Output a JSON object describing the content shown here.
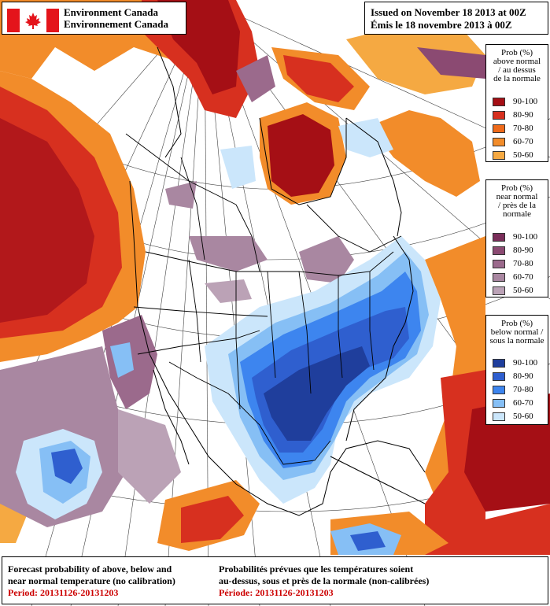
{
  "header": {
    "agency_en": "Environment Canada",
    "agency_fr": "Environnement Canada",
    "issued_en": "Issued on November 18 2013 at 00Z",
    "issued_fr": "Émis le 18 novembre 2013 à 00Z"
  },
  "legends": [
    {
      "title": [
        "Prob (%)",
        "above normal",
        "/ au dessus",
        "de la normale"
      ],
      "items": [
        {
          "range": "90-100",
          "color": "#a50f15"
        },
        {
          "range": "80-90",
          "color": "#d7301f"
        },
        {
          "range": "70-80",
          "color": "#ef6a1a"
        },
        {
          "range": "60-70",
          "color": "#f28c2a"
        },
        {
          "range": "50-60",
          "color": "#f5a942"
        }
      ]
    },
    {
      "title": [
        "Prob (%)",
        "near normal",
        "/ près de la",
        "normale"
      ],
      "items": [
        {
          "range": "90-100",
          "color": "#7a2e5a"
        },
        {
          "range": "80-90",
          "color": "#8b4a72"
        },
        {
          "range": "70-80",
          "color": "#9b6a8c"
        },
        {
          "range": "60-70",
          "color": "#a987a1"
        },
        {
          "range": "50-60",
          "color": "#bba2b6"
        }
      ]
    },
    {
      "title": [
        "Prob (%)",
        "below normal /",
        "sous la normale"
      ],
      "items": [
        {
          "range": "90-100",
          "color": "#1f3e9c"
        },
        {
          "range": "80-90",
          "color": "#2f5fcf"
        },
        {
          "range": "70-80",
          "color": "#3d85ef"
        },
        {
          "range": "60-70",
          "color": "#86bff5"
        },
        {
          "range": "50-60",
          "color": "#cbe6fb"
        }
      ]
    }
  ],
  "caption": {
    "en_line1": "Forecast probability of above, below and",
    "en_line2": "near normal temperature (no calibration)",
    "en_period": "Period: 20131126-20131203",
    "fr_line1": "Probabilités prévues que les températures soient",
    "fr_line2": "au-dessus, sous et près de la normale (non-calibrées)",
    "fr_period": "Période: 20131126-20131203"
  },
  "map": {
    "background_color": "#ffffff",
    "boundary_color": "#000000"
  }
}
